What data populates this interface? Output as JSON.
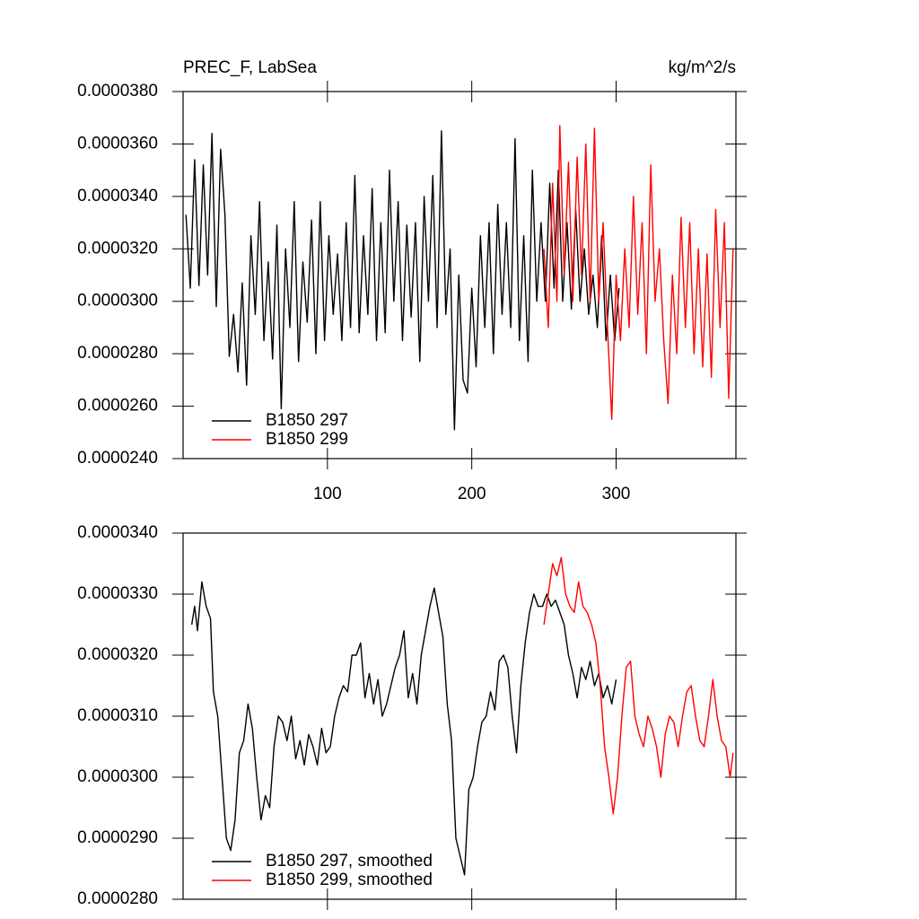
{
  "chart_data": [
    {
      "type": "line",
      "title": "PREC_F, LabSea",
      "right_title": "kg/m^2/s",
      "xlim": [
        0,
        383
      ],
      "xticks": [
        100,
        200,
        300
      ],
      "ylim": [
        2.4e-05,
        3.8e-05
      ],
      "yticks": [
        {
          "value": 2.4e-05,
          "label": "0.0000240"
        },
        {
          "value": 2.6e-05,
          "label": "0.0000260"
        },
        {
          "value": 2.8e-05,
          "label": "0.0000280"
        },
        {
          "value": 3e-05,
          "label": "0.0000300"
        },
        {
          "value": 3.2e-05,
          "label": "0.0000320"
        },
        {
          "value": 3.4e-05,
          "label": "0.0000340"
        },
        {
          "value": 3.6e-05,
          "label": "0.0000360"
        },
        {
          "value": 3.8e-05,
          "label": "0.0000380"
        }
      ],
      "legend": "lower left",
      "series": [
        {
          "name": "B1850 297",
          "color": "#000000",
          "x": [
            2,
            5,
            8,
            11,
            14,
            17,
            20,
            23,
            26,
            29,
            32,
            35,
            38,
            41,
            44,
            47,
            50,
            53,
            56,
            59,
            62,
            65,
            68,
            71,
            74,
            77,
            80,
            83,
            86,
            89,
            92,
            95,
            98,
            101,
            104,
            107,
            110,
            113,
            116,
            119,
            122,
            125,
            128,
            131,
            134,
            137,
            140,
            143,
            146,
            149,
            152,
            155,
            158,
            161,
            164,
            167,
            170,
            173,
            176,
            179,
            182,
            185,
            188,
            191,
            194,
            197,
            200,
            203,
            206,
            209,
            212,
            215,
            218,
            221,
            224,
            227,
            230,
            233,
            236,
            239,
            242,
            245,
            248,
            251,
            254,
            257,
            260,
            263,
            266,
            269,
            272,
            275,
            278,
            281,
            284,
            287,
            290,
            293,
            296,
            299,
            302
          ],
          "values": [
            3.33e-05,
            3.05e-05,
            3.54e-05,
            3.06e-05,
            3.52e-05,
            3.1e-05,
            3.64e-05,
            2.98e-05,
            3.58e-05,
            3.33e-05,
            2.79e-05,
            2.95e-05,
            2.73e-05,
            3.07e-05,
            2.68e-05,
            3.25e-05,
            2.95e-05,
            3.38e-05,
            2.85e-05,
            3.15e-05,
            2.78e-05,
            3.29e-05,
            2.59e-05,
            3.2e-05,
            2.9e-05,
            3.38e-05,
            2.77e-05,
            3.15e-05,
            2.92e-05,
            3.31e-05,
            2.8e-05,
            3.38e-05,
            2.85e-05,
            3.25e-05,
            2.95e-05,
            3.18e-05,
            2.85e-05,
            3.3e-05,
            2.9e-05,
            3.48e-05,
            2.88e-05,
            3.25e-05,
            2.95e-05,
            3.43e-05,
            2.85e-05,
            3.3e-05,
            2.88e-05,
            3.5e-05,
            3e-05,
            3.38e-05,
            2.85e-05,
            3.29e-05,
            2.94e-05,
            3.3e-05,
            2.77e-05,
            3.4e-05,
            3e-05,
            3.48e-05,
            2.9e-05,
            3.65e-05,
            2.95e-05,
            3.2e-05,
            2.51e-05,
            3.1e-05,
            2.7e-05,
            2.65e-05,
            3.05e-05,
            2.75e-05,
            3.25e-05,
            2.9e-05,
            3.3e-05,
            2.8e-05,
            3.37e-05,
            2.95e-05,
            3.3e-05,
            2.9e-05,
            3.62e-05,
            2.85e-05,
            3.25e-05,
            2.77e-05,
            3.5e-05,
            3e-05,
            3.3e-05,
            3e-05,
            3.45e-05,
            3.05e-05,
            3.5e-05,
            3e-05,
            3.3e-05,
            2.97e-05,
            3.35e-05,
            3e-05,
            3.2e-05,
            2.95e-05,
            3.1e-05,
            2.9e-05,
            3.25e-05,
            2.85e-05,
            3.1e-05,
            2.85e-05,
            3.05e-05
          ]
        },
        {
          "name": "B1850 299",
          "color": "#ff0000",
          "x": [
            250,
            253,
            256,
            259,
            261,
            264,
            267,
            270,
            273,
            276,
            279,
            282,
            285,
            288,
            291,
            294,
            297,
            300,
            303,
            306,
            309,
            312,
            315,
            318,
            321,
            324,
            327,
            330,
            333,
            336,
            339,
            342,
            345,
            348,
            351,
            354,
            357,
            360,
            363,
            366,
            369,
            372,
            375,
            378,
            381
          ],
          "values": [
            3.2e-05,
            2.9e-05,
            3.45e-05,
            3e-05,
            3.67e-05,
            3.1e-05,
            3.53e-05,
            3e-05,
            3.55e-05,
            3.1e-05,
            3.6e-05,
            3e-05,
            3.66e-05,
            3e-05,
            3.3e-05,
            2.9e-05,
            2.55e-05,
            3.1e-05,
            2.85e-05,
            3.2e-05,
            2.9e-05,
            3.4e-05,
            2.95e-05,
            3.3e-05,
            2.8e-05,
            3.52e-05,
            3e-05,
            3.2e-05,
            2.85e-05,
            2.61e-05,
            3.1e-05,
            2.8e-05,
            3.32e-05,
            2.9e-05,
            3.3e-05,
            2.8e-05,
            3.2e-05,
            2.75e-05,
            3.18e-05,
            2.71e-05,
            3.35e-05,
            2.9e-05,
            3.3e-05,
            2.63e-05,
            3.2e-05
          ]
        }
      ]
    },
    {
      "type": "line",
      "xlim": [
        0,
        383
      ],
      "xticks": [
        100,
        200,
        300
      ],
      "ylim": [
        2.8e-05,
        3.4e-05
      ],
      "yticks": [
        {
          "value": 2.8e-05,
          "label": "0.0000280"
        },
        {
          "value": 2.9e-05,
          "label": "0.0000290"
        },
        {
          "value": 3e-05,
          "label": "0.0000300"
        },
        {
          "value": 3.1e-05,
          "label": "0.0000310"
        },
        {
          "value": 3.2e-05,
          "label": "0.0000320"
        },
        {
          "value": 3.3e-05,
          "label": "0.0000330"
        },
        {
          "value": 3.4e-05,
          "label": "0.0000340"
        }
      ],
      "legend": "lower left",
      "series": [
        {
          "name": "B1850 297, smoothed",
          "color": "#000000",
          "x": [
            6,
            8,
            10,
            13,
            16,
            19,
            21,
            24,
            27,
            30,
            33,
            36,
            39,
            42,
            45,
            48,
            51,
            54,
            57,
            60,
            63,
            66,
            69,
            72,
            75,
            78,
            81,
            84,
            87,
            90,
            93,
            96,
            99,
            102,
            105,
            108,
            111,
            114,
            117,
            120,
            123,
            126,
            129,
            132,
            135,
            138,
            141,
            144,
            147,
            150,
            153,
            156,
            159,
            162,
            165,
            168,
            171,
            174,
            177,
            180,
            183,
            186,
            189,
            192,
            195,
            198,
            201,
            204,
            207,
            210,
            213,
            216,
            219,
            222,
            225,
            228,
            231,
            234,
            237,
            240,
            243,
            246,
            249,
            252,
            255,
            258,
            261,
            264,
            267,
            270,
            273,
            276,
            279,
            282,
            285,
            288,
            291,
            294,
            297,
            300
          ],
          "values": [
            3.25e-05,
            3.28e-05,
            3.24e-05,
            3.32e-05,
            3.28e-05,
            3.26e-05,
            3.14e-05,
            3.1e-05,
            3e-05,
            2.9e-05,
            2.88e-05,
            2.93e-05,
            3.04e-05,
            3.06e-05,
            3.12e-05,
            3.08e-05,
            3e-05,
            2.93e-05,
            2.97e-05,
            2.95e-05,
            3.05e-05,
            3.1e-05,
            3.09e-05,
            3.06e-05,
            3.1e-05,
            3.03e-05,
            3.06e-05,
            3.02e-05,
            3.07e-05,
            3.05e-05,
            3.02e-05,
            3.08e-05,
            3.04e-05,
            3.05e-05,
            3.1e-05,
            3.13e-05,
            3.15e-05,
            3.14e-05,
            3.2e-05,
            3.2e-05,
            3.22e-05,
            3.13e-05,
            3.17e-05,
            3.12e-05,
            3.16e-05,
            3.1e-05,
            3.12e-05,
            3.15e-05,
            3.18e-05,
            3.2e-05,
            3.24e-05,
            3.13e-05,
            3.17e-05,
            3.12e-05,
            3.2e-05,
            3.24e-05,
            3.28e-05,
            3.31e-05,
            3.27e-05,
            3.23e-05,
            3.12e-05,
            3.06e-05,
            2.9e-05,
            2.87e-05,
            2.84e-05,
            2.98e-05,
            3e-05,
            3.05e-05,
            3.09e-05,
            3.1e-05,
            3.14e-05,
            3.11e-05,
            3.19e-05,
            3.2e-05,
            3.18e-05,
            3.1e-05,
            3.04e-05,
            3.15e-05,
            3.22e-05,
            3.27e-05,
            3.3e-05,
            3.28e-05,
            3.28e-05,
            3.3e-05,
            3.28e-05,
            3.29e-05,
            3.27e-05,
            3.25e-05,
            3.2e-05,
            3.17e-05,
            3.13e-05,
            3.18e-05,
            3.16e-05,
            3.19e-05,
            3.15e-05,
            3.17e-05,
            3.13e-05,
            3.15e-05,
            3.12e-05,
            3.16e-05
          ]
        },
        {
          "name": "B1850 299, smoothed",
          "color": "#ff0000",
          "x": [
            250,
            253,
            256,
            259,
            262,
            265,
            268,
            271,
            274,
            277,
            280,
            283,
            286,
            289,
            292,
            295,
            298,
            301,
            304,
            307,
            310,
            313,
            316,
            319,
            322,
            325,
            328,
            331,
            334,
            337,
            340,
            343,
            346,
            349,
            352,
            355,
            358,
            361,
            364,
            367,
            370,
            373,
            376,
            379,
            381
          ],
          "values": [
            3.25e-05,
            3.3e-05,
            3.35e-05,
            3.33e-05,
            3.36e-05,
            3.3e-05,
            3.28e-05,
            3.27e-05,
            3.32e-05,
            3.28e-05,
            3.27e-05,
            3.25e-05,
            3.22e-05,
            3.15e-05,
            3.05e-05,
            3e-05,
            2.94e-05,
            3e-05,
            3.1e-05,
            3.18e-05,
            3.19e-05,
            3.1e-05,
            3.07e-05,
            3.05e-05,
            3.1e-05,
            3.08e-05,
            3.05e-05,
            3e-05,
            3.07e-05,
            3.1e-05,
            3.09e-05,
            3.05e-05,
            3.1e-05,
            3.14e-05,
            3.15e-05,
            3.1e-05,
            3.06e-05,
            3.05e-05,
            3.1e-05,
            3.16e-05,
            3.1e-05,
            3.06e-05,
            3.05e-05,
            3e-05,
            3.04e-05
          ]
        }
      ]
    }
  ]
}
